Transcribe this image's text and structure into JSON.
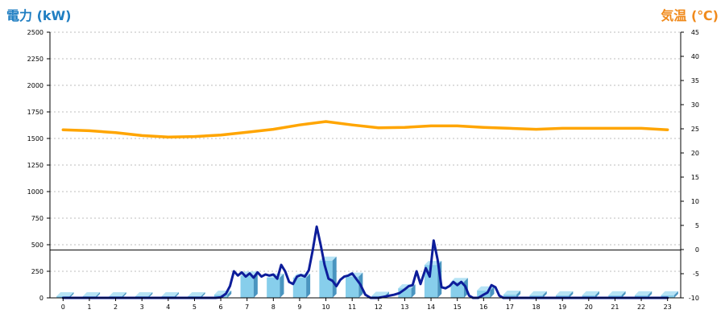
{
  "left_axis_title": "電力 (kW)",
  "right_axis_title": "気温 (℃)",
  "colors": {
    "left_title": "#1f7ec2",
    "right_title": "#f08a1c",
    "bar_face": "#87ceeb",
    "bar_top": "#b6e3f5",
    "bar_side": "#4a95c0",
    "power_line": "#0d1d9a",
    "temp_line": "#ffa500",
    "grid": "#bdbdbd",
    "axis": "#000000"
  },
  "chart_data": {
    "type": "bar+line",
    "categories": [
      "0",
      "1",
      "2",
      "3",
      "4",
      "5",
      "6",
      "7",
      "8",
      "9",
      "10",
      "11",
      "12",
      "13",
      "14",
      "15",
      "16",
      "17",
      "18",
      "19",
      "20",
      "21",
      "22",
      "23"
    ],
    "y_left_ticks": [
      "0",
      "250",
      "500",
      "750",
      "1000",
      "1250",
      "1500",
      "1750",
      "2000",
      "2250",
      "2500"
    ],
    "y_right_ticks": [
      "-10",
      "-5",
      "0",
      "5",
      "10",
      "15",
      "20",
      "25",
      "30",
      "35",
      "40",
      "45"
    ],
    "ylim_left": [
      0,
      2500
    ],
    "ylim_right": [
      -10,
      45
    ],
    "reference_line": 450,
    "bar_series": {
      "values": [
        15,
        15,
        15,
        15,
        15,
        15,
        30,
        210,
        190,
        190,
        350,
        200,
        20,
        90,
        310,
        150,
        70,
        30,
        25,
        25,
        25,
        25,
        25,
        25
      ]
    },
    "power_line": {
      "points": [
        [
          0,
          0
        ],
        [
          1,
          0
        ],
        [
          2,
          0
        ],
        [
          3,
          0
        ],
        [
          4,
          0
        ],
        [
          5,
          0
        ],
        [
          5.5,
          0
        ],
        [
          5.8,
          0
        ],
        [
          6.0,
          5
        ],
        [
          6.2,
          40
        ],
        [
          6.35,
          110
        ],
        [
          6.5,
          250
        ],
        [
          6.65,
          210
        ],
        [
          6.8,
          240
        ],
        [
          6.95,
          200
        ],
        [
          7.1,
          230
        ],
        [
          7.25,
          190
        ],
        [
          7.4,
          240
        ],
        [
          7.55,
          200
        ],
        [
          7.7,
          220
        ],
        [
          7.85,
          210
        ],
        [
          8.0,
          220
        ],
        [
          8.15,
          180
        ],
        [
          8.3,
          310
        ],
        [
          8.45,
          250
        ],
        [
          8.6,
          150
        ],
        [
          8.75,
          130
        ],
        [
          8.9,
          200
        ],
        [
          9.05,
          215
        ],
        [
          9.2,
          200
        ],
        [
          9.35,
          260
        ],
        [
          9.5,
          450
        ],
        [
          9.65,
          670
        ],
        [
          9.8,
          500
        ],
        [
          9.95,
          310
        ],
        [
          10.1,
          180
        ],
        [
          10.25,
          160
        ],
        [
          10.4,
          110
        ],
        [
          10.55,
          170
        ],
        [
          10.7,
          200
        ],
        [
          10.85,
          210
        ],
        [
          11.0,
          230
        ],
        [
          11.15,
          180
        ],
        [
          11.3,
          130
        ],
        [
          11.5,
          30
        ],
        [
          11.7,
          0
        ],
        [
          12.0,
          0
        ],
        [
          12.2,
          10
        ],
        [
          12.4,
          20
        ],
        [
          12.6,
          30
        ],
        [
          12.8,
          45
        ],
        [
          13.0,
          80
        ],
        [
          13.15,
          110
        ],
        [
          13.3,
          120
        ],
        [
          13.45,
          250
        ],
        [
          13.6,
          130
        ],
        [
          13.8,
          280
        ],
        [
          13.95,
          200
        ],
        [
          14.1,
          540
        ],
        [
          14.25,
          360
        ],
        [
          14.4,
          100
        ],
        [
          14.55,
          90
        ],
        [
          14.7,
          110
        ],
        [
          14.85,
          150
        ],
        [
          15.0,
          120
        ],
        [
          15.15,
          150
        ],
        [
          15.3,
          110
        ],
        [
          15.45,
          20
        ],
        [
          15.6,
          0
        ],
        [
          15.8,
          0
        ],
        [
          16.0,
          30
        ],
        [
          16.15,
          50
        ],
        [
          16.3,
          120
        ],
        [
          16.45,
          100
        ],
        [
          16.6,
          20
        ],
        [
          16.75,
          0
        ],
        [
          17.0,
          0
        ],
        [
          18.0,
          0
        ],
        [
          19.0,
          0
        ],
        [
          20.0,
          0
        ],
        [
          21.0,
          0
        ],
        [
          22.0,
          0
        ],
        [
          23.0,
          0
        ]
      ]
    },
    "temperature_line": {
      "points": [
        [
          0,
          24.8
        ],
        [
          1,
          24.6
        ],
        [
          2,
          24.2
        ],
        [
          3,
          23.6
        ],
        [
          4,
          23.3
        ],
        [
          5,
          23.4
        ],
        [
          6,
          23.7
        ],
        [
          7,
          24.3
        ],
        [
          8,
          24.9
        ],
        [
          9,
          25.8
        ],
        [
          10,
          26.5
        ],
        [
          11,
          25.8
        ],
        [
          12,
          25.2
        ],
        [
          13,
          25.3
        ],
        [
          14,
          25.6
        ],
        [
          15,
          25.6
        ],
        [
          16,
          25.3
        ],
        [
          17,
          25.1
        ],
        [
          18,
          24.9
        ],
        [
          19,
          25.1
        ],
        [
          20,
          25.1
        ],
        [
          21,
          25.1
        ],
        [
          22,
          25.1
        ],
        [
          23,
          24.8
        ]
      ]
    }
  }
}
